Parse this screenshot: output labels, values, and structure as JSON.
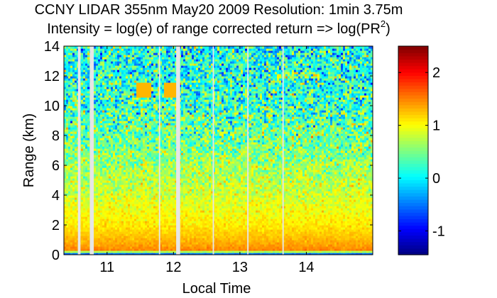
{
  "chart_data": {
    "type": "heatmap",
    "title": "CCNY LIDAR 355nm May20 2009 Resolution: 1min 3.75m",
    "subtitle_prefix": "Intensity = log(e) of range corrected return => log(PR",
    "subtitle_sup": "2",
    "subtitle_suffix": ")",
    "xlabel": "Local Time",
    "ylabel": "Range (km)",
    "xlim": [
      10.35,
      15.0
    ],
    "ylim": [
      0,
      14
    ],
    "x_ticks": [
      11,
      12,
      13,
      14
    ],
    "y_ticks": [
      0,
      2,
      4,
      6,
      8,
      10,
      12,
      14
    ],
    "colorbar": {
      "colormap": "jet",
      "clim": [
        -1.45,
        2.5
      ],
      "ticks": [
        -1,
        0,
        1,
        2
      ]
    },
    "data_gaps_local_time": [
      {
        "start": 10.56,
        "end": 10.6
      },
      {
        "start": 10.74,
        "end": 10.8
      },
      {
        "start": 11.78,
        "end": 11.8
      },
      {
        "start": 12.04,
        "end": 12.1
      },
      {
        "start": 12.59,
        "end": 12.61
      },
      {
        "start": 13.11,
        "end": 13.13
      },
      {
        "start": 13.64,
        "end": 13.66
      }
    ],
    "intensity_profile": [
      {
        "range_km": 0.0,
        "value": -1.1
      },
      {
        "range_km": 0.15,
        "value": 0.1
      },
      {
        "range_km": 0.3,
        "value": 1.5
      },
      {
        "range_km": 1.0,
        "value": 1.3
      },
      {
        "range_km": 2.0,
        "value": 1.1
      },
      {
        "range_km": 4.0,
        "value": 0.85
      },
      {
        "range_km": 6.0,
        "value": 0.65
      },
      {
        "range_km": 8.0,
        "value": 0.45
      },
      {
        "range_km": 10.0,
        "value": 0.25
      },
      {
        "range_km": 12.0,
        "value": 0.15
      },
      {
        "range_km": 14.0,
        "value": 0.1
      }
    ]
  }
}
